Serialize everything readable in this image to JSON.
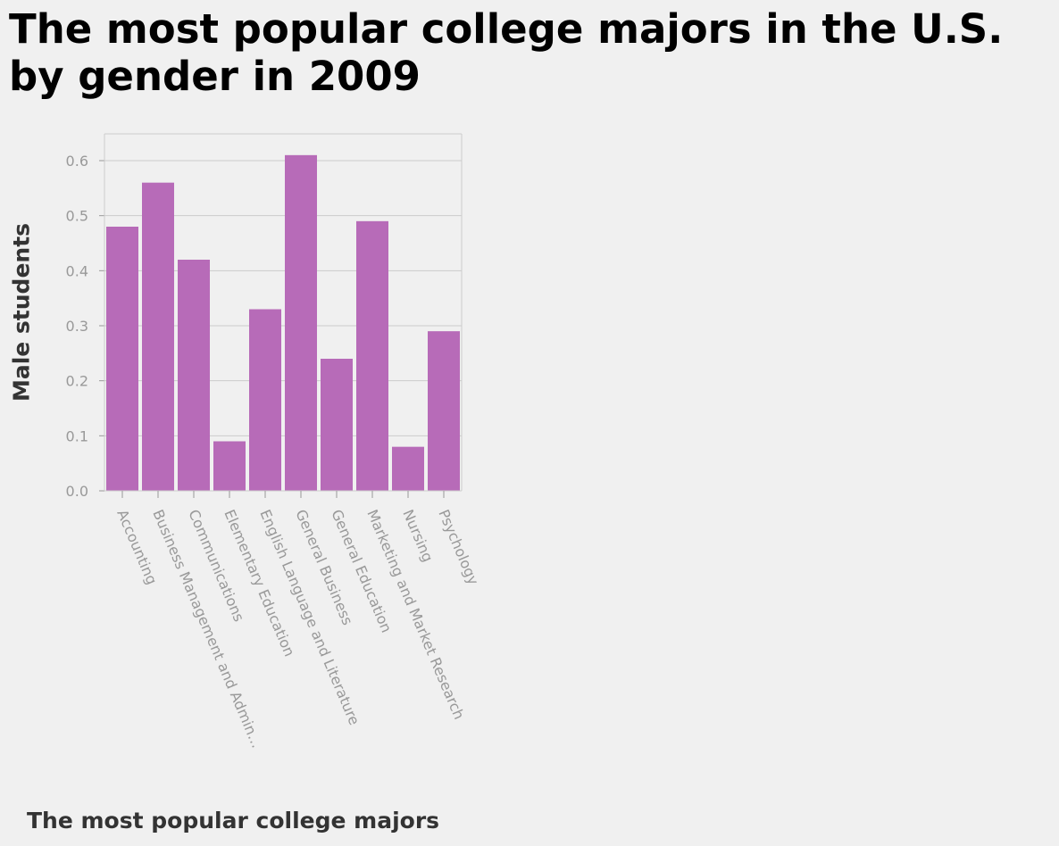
{
  "chart_data": {
    "type": "bar",
    "title": "The most popular college majors in the U.S. by gender in 2009",
    "xlabel": "The most popular college majors",
    "ylabel": "Male students",
    "categories": [
      "Accounting",
      "Business Management and Admin…",
      "Communications",
      "Elementary Education",
      "English Language and Literature",
      "General Business",
      "General Education",
      "Marketing and Market Research",
      "Nursing",
      "Psychology"
    ],
    "values": [
      0.48,
      0.56,
      0.42,
      0.09,
      0.33,
      0.61,
      0.24,
      0.49,
      0.08,
      0.29
    ],
    "yticks": [
      "0.0",
      "0.1",
      "0.2",
      "0.3",
      "0.4",
      "0.5",
      "0.6"
    ],
    "ylim": [
      0,
      0.65
    ],
    "grid": true,
    "bar_color": "#b76bb8"
  }
}
